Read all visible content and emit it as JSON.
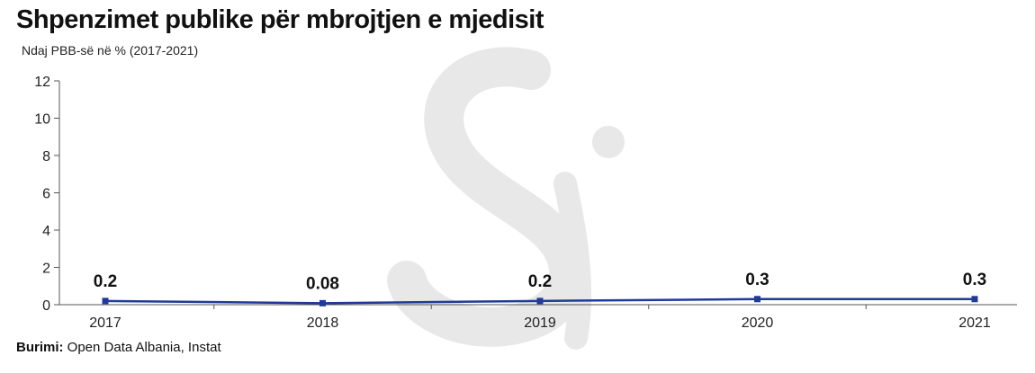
{
  "title": "Shpenzimet publike për mbrojtjen e mjedisit",
  "subtitle": "Ndaj PBB-së në % (2017-2021)",
  "source": {
    "label": "Burimi:",
    "text": " Open Data Albania, Instat"
  },
  "colors": {
    "line": "#1f3a9a",
    "axis": "#555555",
    "watermark": "#e6e6e6"
  },
  "chart_data": {
    "type": "line",
    "title": "Shpenzimet publike për mbrojtjen e mjedisit",
    "subtitle": "Ndaj PBB-së në % (2017-2021)",
    "categories": [
      "2017",
      "2018",
      "2019",
      "2020",
      "2021"
    ],
    "series": [
      {
        "values": [
          0.2,
          0.08,
          0.2,
          0.3,
          0.3
        ]
      }
    ],
    "data_labels": [
      "0.2",
      "0.08",
      "0.2",
      "0.3",
      "0.3"
    ],
    "ylim": [
      0,
      12
    ],
    "yticks": [
      0,
      2,
      4,
      6,
      8,
      10,
      12
    ],
    "grid": false,
    "legend": "none"
  }
}
